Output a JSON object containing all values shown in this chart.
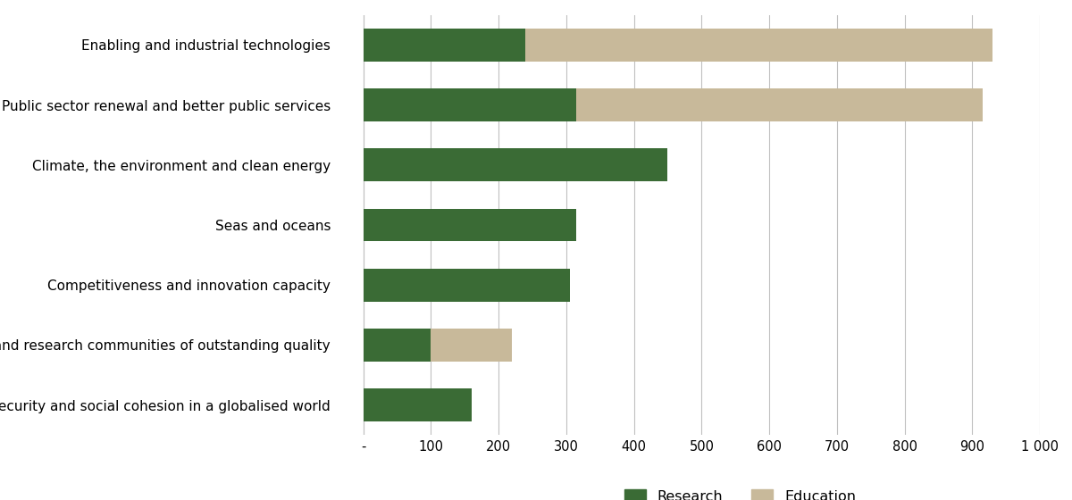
{
  "categories": [
    "Enabling and industrial technologies",
    "Public sector renewal and better public services",
    "Climate, the environment and clean energy",
    "Seas and oceans",
    "Competitiveness and innovation capacity",
    "Academic and research communities of outstanding quality",
    "Societal security and social cohesion in a globalised world"
  ],
  "research_values": [
    240,
    315,
    450,
    315,
    305,
    100,
    160
  ],
  "education_values": [
    690,
    600,
    0,
    0,
    0,
    120,
    0
  ],
  "research_color": "#3a6b35",
  "education_color": "#c8b99a",
  "background_color": "#ffffff",
  "grid_color": "#c0c0c0",
  "xticks": [
    0,
    100,
    200,
    300,
    400,
    500,
    600,
    700,
    800,
    900,
    1000
  ],
  "xtick_labels": [
    "-",
    "100",
    "200",
    "300",
    "400",
    "500",
    "600",
    "700",
    "800",
    "900",
    "1 000"
  ],
  "xlim": [
    -30,
    1000
  ],
  "legend_labels": [
    "Research",
    "Education"
  ],
  "bar_height": 0.55,
  "tick_fontsize": 10.5,
  "label_fontsize": 11,
  "legend_fontsize": 11.5
}
